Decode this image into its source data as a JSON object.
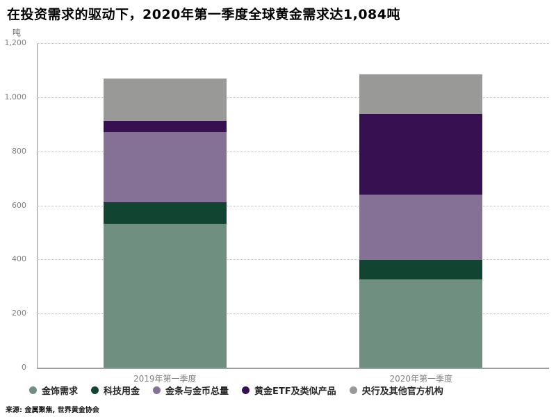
{
  "title": "在投资需求的驱动下，2020年第一季度全球黄金需求达1,084吨",
  "source": "来源: 金属聚焦, 世界黄金协会",
  "chart_data": {
    "type": "bar",
    "stacked": true,
    "title": "在投资需求的驱动下，2020年第一季度全球黄金需求达1,084吨",
    "unit_label": "吨",
    "ylabel": "吨",
    "xlabel": "",
    "categories": [
      "2019年第一季度",
      "2020年第一季度"
    ],
    "series": [
      {
        "name": "金饰需求",
        "color": "#6F8F80",
        "values": [
          533,
          326
        ]
      },
      {
        "name": "科技用金",
        "color": "#114431",
        "values": [
          79,
          73
        ]
      },
      {
        "name": "金条与金币总量",
        "color": "#857196",
        "values": [
          258,
          242
        ]
      },
      {
        "name": "黄金ETF及类似产品",
        "color": "#371052",
        "values": [
          43,
          298
        ]
      },
      {
        "name": "央行及其他官方机构",
        "color": "#999997",
        "values": [
          157,
          145
        ]
      }
    ],
    "totals": [
      1070,
      1084
    ],
    "ylim": [
      0,
      1200
    ],
    "yticks": [
      0,
      200,
      400,
      600,
      800,
      1000,
      1200
    ],
    "ytick_labels": [
      "0",
      "200",
      "400",
      "600",
      "800",
      "1,000",
      "1,200"
    ],
    "grid": "horizontal dotted",
    "legend_position": "bottom",
    "axis_color": "#9d9d9d",
    "grid_color": "#bcbcbc",
    "tick_color": "#7f7f7f"
  }
}
